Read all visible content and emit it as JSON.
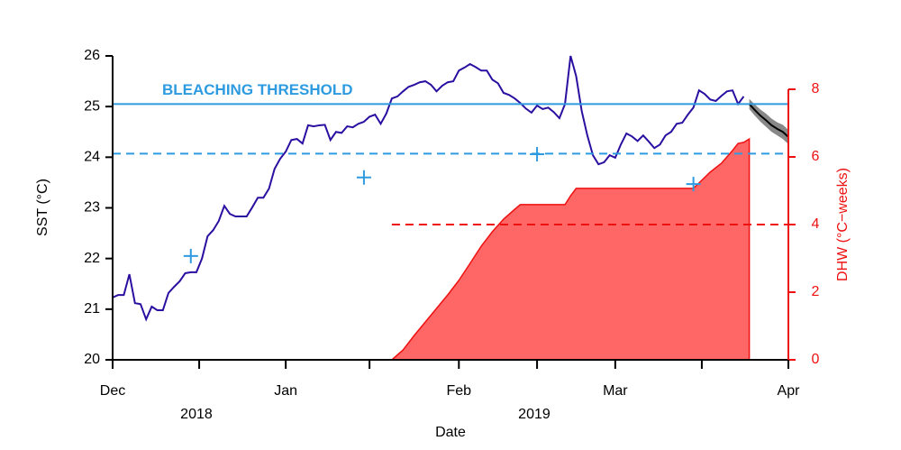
{
  "chart_data": {
    "type": "line",
    "x_label": "Date",
    "y_label": "SST (°C)",
    "y2_label": "DHW (°C−weeks)",
    "xlim": [
      0,
      121
    ],
    "xticks": [
      {
        "value": 0,
        "label": "Dec"
      },
      {
        "value": 31,
        "label": "Jan"
      },
      {
        "value": 62,
        "label": "Feb"
      },
      {
        "value": 90,
        "label": "Mar"
      },
      {
        "value": 121,
        "label": "Apr"
      }
    ],
    "xminor_ticks": [
      15.5,
      46,
      76,
      105.5
    ],
    "year_labels": [
      {
        "value": 15,
        "label": "2018"
      },
      {
        "value": 75.5,
        "label": "2019"
      }
    ],
    "ylim": [
      20,
      26
    ],
    "yticks": [
      20,
      21,
      22,
      23,
      24,
      25,
      26
    ],
    "y2lim": [
      0,
      8
    ],
    "y2ticks": [
      0,
      2,
      4,
      6,
      8
    ],
    "y2_color": "#ee1111",
    "reference_lines": [
      {
        "axis": "y",
        "value": 25.05,
        "style": "solid",
        "color": "#2e9be0",
        "label": "BLEACHING THRESHOLD"
      },
      {
        "axis": "y",
        "value": 24.07,
        "style": "dashed",
        "color": "#2e9be0"
      },
      {
        "axis": "y2",
        "value": 4,
        "style": "dashed",
        "color": "#ee1111",
        "from": 50
      }
    ],
    "series": [
      {
        "kind": "area",
        "axis": "y2",
        "color": "#ff6666",
        "stroke": "#ee1111",
        "x": [
          50,
          52,
          54,
          56,
          58,
          60,
          62,
          64,
          66,
          68,
          70,
          72,
          73,
          75,
          81,
          82,
          83,
          89,
          104,
          105,
          107,
          109,
          111,
          112,
          113,
          114
        ],
        "values": [
          0,
          0.29,
          0.72,
          1.12,
          1.52,
          1.92,
          2.35,
          2.85,
          3.36,
          3.79,
          4.16,
          4.45,
          4.59,
          4.59,
          4.59,
          4.85,
          5.07,
          5.07,
          5.07,
          5.23,
          5.55,
          5.81,
          6.19,
          6.4,
          6.43,
          6.53
        ]
      },
      {
        "kind": "line",
        "color": "#2a0fa0",
        "x": [
          0,
          1,
          2,
          3,
          4,
          5,
          6,
          7,
          8,
          9,
          10,
          11,
          12,
          13,
          14,
          15,
          16,
          17,
          18,
          19,
          20,
          21,
          22,
          23,
          24,
          25,
          26,
          27,
          28,
          29,
          30,
          31,
          32,
          33,
          34,
          35,
          36,
          37,
          38,
          39,
          40,
          41,
          42,
          43,
          44,
          45,
          46,
          47,
          48,
          49,
          50,
          51,
          52,
          53,
          54,
          55,
          56,
          57,
          58,
          59,
          60,
          61,
          62,
          63,
          64,
          65,
          66,
          67,
          68,
          69,
          70,
          71,
          72,
          73,
          74,
          75,
          76,
          77,
          78,
          79,
          80,
          81,
          82,
          83,
          84,
          85,
          86,
          87,
          88,
          89,
          90,
          91,
          92,
          93,
          94,
          95,
          96,
          97,
          98,
          99,
          100,
          101,
          102,
          103,
          104,
          105,
          106,
          107,
          108,
          109,
          110,
          111,
          112,
          113
        ],
        "values": [
          21.23,
          21.28,
          21.28,
          21.69,
          21.12,
          21.1,
          20.8,
          21.05,
          20.98,
          20.98,
          21.32,
          21.44,
          21.55,
          21.71,
          21.73,
          21.73,
          22.0,
          22.44,
          22.56,
          22.74,
          23.04,
          22.88,
          22.83,
          22.83,
          22.83,
          23.01,
          23.2,
          23.2,
          23.38,
          23.77,
          23.97,
          24.11,
          24.34,
          24.36,
          24.27,
          24.63,
          24.61,
          24.63,
          24.64,
          24.34,
          24.5,
          24.48,
          24.61,
          24.59,
          24.66,
          24.7,
          24.8,
          24.84,
          24.66,
          24.86,
          25.16,
          25.2,
          25.3,
          25.39,
          25.43,
          25.48,
          25.5,
          25.43,
          25.3,
          25.41,
          25.48,
          25.5,
          25.71,
          25.77,
          25.84,
          25.78,
          25.71,
          25.71,
          25.53,
          25.46,
          25.27,
          25.23,
          25.16,
          25.07,
          24.96,
          24.88,
          25.02,
          24.95,
          24.98,
          24.89,
          24.77,
          25.05,
          26.0,
          25.6,
          24.91,
          24.43,
          24.04,
          23.86,
          23.9,
          24.04,
          23.99,
          24.25,
          24.47,
          24.41,
          24.32,
          24.43,
          24.31,
          24.18,
          24.25,
          24.43,
          24.5,
          24.66,
          24.68,
          24.84,
          24.98,
          25.32,
          25.25,
          25.14,
          25.11,
          25.21,
          25.3,
          25.32,
          25.05,
          25.2
        ]
      },
      {
        "kind": "forecast",
        "color": "#000000",
        "band_color": "#888888",
        "x": [
          114,
          115,
          116,
          117,
          118,
          119,
          120,
          121
        ],
        "values": [
          25.05,
          24.93,
          24.82,
          24.73,
          24.63,
          24.56,
          24.5,
          24.4
        ],
        "lower": [
          24.95,
          24.82,
          24.7,
          24.6,
          24.5,
          24.43,
          24.36,
          24.26
        ],
        "upper": [
          25.15,
          25.04,
          24.94,
          24.86,
          24.76,
          24.69,
          24.64,
          24.54
        ]
      },
      {
        "kind": "marker",
        "color": "#2e9be0",
        "x": [
          14,
          45,
          76,
          104
        ],
        "values": [
          22.05,
          23.6,
          24.06,
          23.47
        ]
      }
    ]
  }
}
